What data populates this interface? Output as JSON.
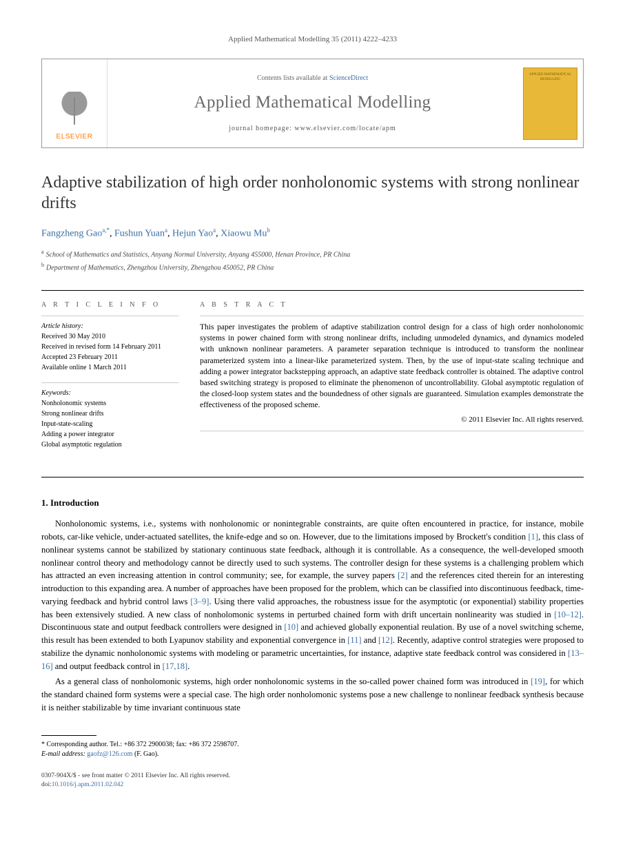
{
  "running_head": "Applied Mathematical Modelling 35 (2011) 4222–4233",
  "masthead": {
    "publisher": "ELSEVIER",
    "contents_prefix": "Contents lists available at ",
    "contents_link": "ScienceDirect",
    "journal": "Applied Mathematical Modelling",
    "homepage_prefix": "journal homepage: ",
    "homepage_url": "www.elsevier.com/locate/apm",
    "cover_text": "APPLIED MATHEMATICAL MODELLING"
  },
  "title": "Adaptive stabilization of high order nonholonomic systems with strong nonlinear drifts",
  "authors": [
    {
      "name": "Fangzheng Gao",
      "marks": "a,*"
    },
    {
      "name": "Fushun Yuan",
      "marks": "a"
    },
    {
      "name": "Hejun Yao",
      "marks": "a"
    },
    {
      "name": "Xiaowu Mu",
      "marks": "b"
    }
  ],
  "affiliations": [
    {
      "mark": "a",
      "text": "School of Mathematics and Statistics, Anyang Normal University, Anyang 455000, Henan Province, PR China"
    },
    {
      "mark": "b",
      "text": "Department of Mathematics, Zhengzhou University, Zhengzhou 450052, PR China"
    }
  ],
  "article_info": {
    "heading": "A R T I C L E   I N F O",
    "history_label": "Article history:",
    "history": [
      "Received 30 May 2010",
      "Received in revised form 14 February 2011",
      "Accepted 23 February 2011",
      "Available online 1 March 2011"
    ],
    "keywords_label": "Keywords:",
    "keywords": [
      "Nonholonomic systems",
      "Strong nonlinear drifts",
      "Input-state-scaling",
      "Adding a power integrator",
      "Global asymptotic regulation"
    ]
  },
  "abstract": {
    "heading": "A B S T R A C T",
    "text": "This paper investigates the problem of adaptive stabilization control design for a class of high order nonholonomic systems in power chained form with strong nonlinear drifts, including unmodeled dynamics, and dynamics modeled with unknown nonlinear parameters. A parameter separation technique is introduced to transform the nonlinear parameterized system into a linear-like parameterized system. Then, by the use of input-state scaling technique and adding a power integrator backstepping approach, an adaptive state feedback controller is obtained. The adaptive control based switching strategy is proposed to eliminate the phenomenon of uncontrollability. Global asymptotic regulation of the closed-loop system states and the boundedness of other signals are guaranteed. Simulation examples demonstrate the effectiveness of the proposed scheme.",
    "copyright": "© 2011 Elsevier Inc. All rights reserved."
  },
  "intro": {
    "heading": "1. Introduction",
    "p1_a": "Nonholonomic systems, i.e., systems with nonholonomic or nonintegrable constraints, are quite often encountered in practice, for instance, mobile robots, car-like vehicle, under-actuated satellites, the knife-edge and so on. However, due to the limitations imposed by Brockett's condition ",
    "ref1": "[1]",
    "p1_b": ", this class of nonlinear systems cannot be stabilized by stationary continuous state feedback, although it is controllable. As a consequence, the well-developed smooth nonlinear control theory and methodology cannot be directly used to such systems. The controller design for these systems is a challenging problem which has attracted an even increasing attention in control community; see, for example, the survey papers ",
    "ref2": "[2]",
    "p1_c": " and the references cited therein for an interesting introduction to this expanding area. A number of approaches have been proposed for the problem, which can be classified into discontinuous feedback, time-varying feedback and hybrid control laws ",
    "ref3_9": "[3–9]",
    "p1_d": ". Using there valid approaches, the robustness issue for the asymptotic (or exponential) stability properties has been extensively studied. A new class of nonholomonic systems in perturbed chained form with drift uncertain nonlinearity was studied in ",
    "ref10_12": "[10–12]",
    "p1_e": ". Discontinuous state and output feedback controllers were designed in ",
    "ref10": "[10]",
    "p1_f": " and achieved globally exponential reulation. By use of a novel switching scheme, this result has been extended to both Lyapunov stability and exponential convergence in ",
    "ref11": "[11]",
    "p1_g": " and ",
    "ref12": "[12]",
    "p1_h": ". Recently, adaptive control strategies were proposed to stabilize the dynamic nonholonomic systems with modeling or parametric uncertainties, for instance, adaptive state feedback control was considered in ",
    "ref13_16": "[13–16]",
    "p1_i": " and output feedback control in ",
    "ref17_18": "[17,18]",
    "p1_j": ".",
    "p2_a": "As a general class of nonholomonic systems, high order nonholonomic systems in the so-called power chained form was introduced in ",
    "ref19": "[19]",
    "p2_b": ", for which the standard chained form systems were a special case. The high order nonholomonic systems pose a new challenge to nonlinear feedback synthesis because it is neither stabilizable by time invariant continuous state"
  },
  "footnotes": {
    "corr": "* Corresponding author. Tel.: +86 372 2900038; fax: +86 372 2598707.",
    "email_label": "E-mail address: ",
    "email": "gaofz@126.com",
    "email_who": " (F. Gao)."
  },
  "footer": {
    "line1": "0307-904X/$ - see front matter © 2011 Elsevier Inc. All rights reserved.",
    "doi_label": "doi:",
    "doi": "10.1016/j.apm.2011.02.042"
  },
  "colors": {
    "link": "#3a6ea5",
    "publisher": "#ff7a00",
    "cover_bg": "#e8b838"
  }
}
